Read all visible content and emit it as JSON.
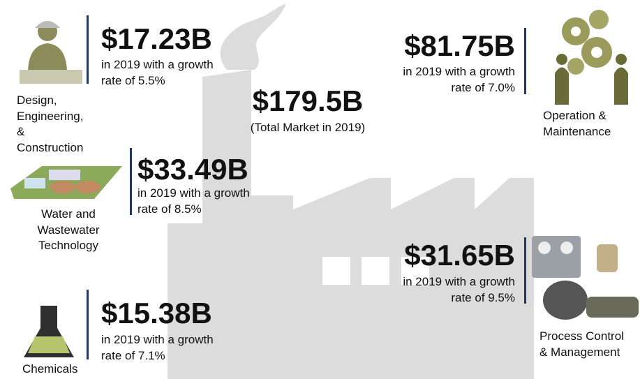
{
  "center": {
    "value": "$179.5B",
    "caption": "(Total Market in 2019)"
  },
  "segments": [
    {
      "value": "$17.23B",
      "desc": [
        "in 2019 with a growth",
        "rate of 5.5%"
      ],
      "label": [
        "Design,",
        "Engineering,",
        "&",
        "Construction"
      ]
    },
    {
      "value": "$33.49B",
      "desc": [
        "in 2019 with a growth",
        "rate of 8.5%"
      ],
      "label": [
        "Water and",
        "Wastewater",
        "Technology"
      ]
    },
    {
      "value": "$15.38B",
      "desc": [
        "in 2019 with a growth",
        "rate of 7.1%"
      ],
      "label": [
        "Chemicals"
      ]
    },
    {
      "value": "$81.75B",
      "desc": [
        "in 2019 with a growth",
        "rate of 7.0%"
      ],
      "label": [
        "Operation &",
        "Maintenance"
      ]
    },
    {
      "value": "$31.65B",
      "desc": [
        "in 2019 with a growth",
        "rate of 9.5%"
      ],
      "label": [
        "Process Control",
        "& Management"
      ]
    }
  ]
}
